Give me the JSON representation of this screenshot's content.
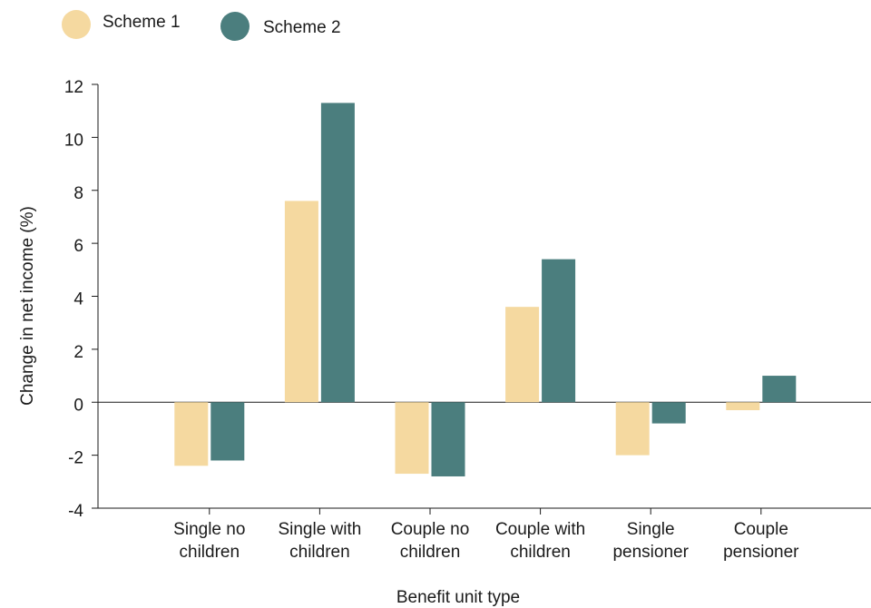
{
  "chart_data": {
    "type": "bar",
    "categories": [
      [
        "Single no",
        "children"
      ],
      [
        "Single with",
        "children"
      ],
      [
        "Couple no",
        "children"
      ],
      [
        "Couple with",
        "children"
      ],
      [
        "Single",
        "pensioner"
      ],
      [
        "Couple",
        "pensioner"
      ]
    ],
    "series": [
      {
        "name": "Scheme 1",
        "color": "#f5d9a0",
        "values": [
          -2.4,
          7.6,
          -2.7,
          3.6,
          -2.0,
          -0.3
        ]
      },
      {
        "name": "Scheme 2",
        "color": "#4b7e7e",
        "values": [
          -2.2,
          11.3,
          -2.8,
          5.4,
          -0.8,
          1.0
        ]
      }
    ],
    "xlabel": "Benefit unit type",
    "ylabel": "Change in net income (%)",
    "ylim": [
      -4,
      12
    ],
    "yticks": [
      -4,
      -2,
      0,
      2,
      4,
      6,
      8,
      10,
      12
    ],
    "legend_position": "top-left",
    "grid": false
  }
}
